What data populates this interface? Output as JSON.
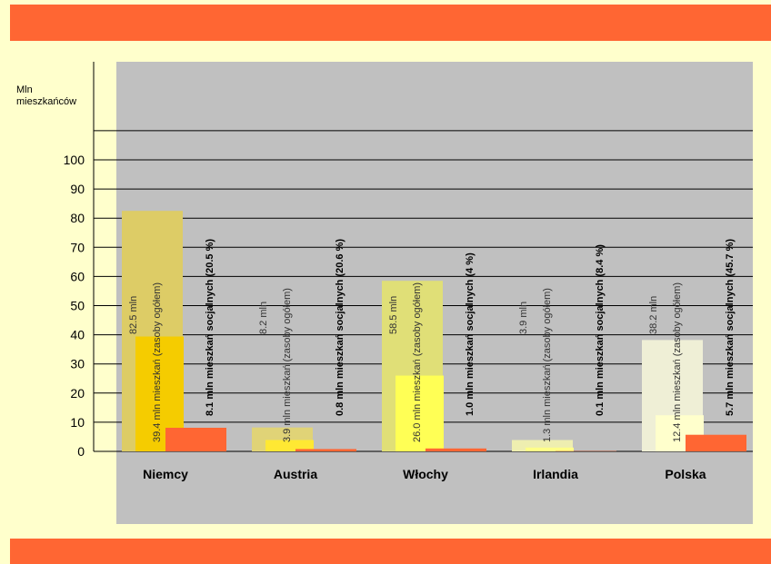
{
  "colors": {
    "band": "#ff6633",
    "background": "#ffffcc",
    "plot_area": "#c0c0c0",
    "total_bars": [
      "#ddcc66",
      "#e0d377",
      "#e0df77",
      "#eeeeb0",
      "#efefd6"
    ],
    "dwelling_bars": [
      "#f5cc00",
      "#ffe833",
      "#ffff55",
      "#ffff88",
      "#ffffcc"
    ],
    "social_bars": "#ff6633"
  },
  "chart_data": {
    "type": "bar",
    "unit_label": "Mln\nmieszkańców",
    "categories": [
      "Niemcy",
      "Austria",
      "Włochy",
      "Irlandia",
      "Polska"
    ],
    "series": [
      {
        "values": [
          82.5,
          8.2,
          58.5,
          3.9,
          38.2
        ]
      },
      {
        "values": [
          39.4,
          3.9,
          26.0,
          1.3,
          12.4
        ]
      },
      {
        "values": [
          8.1,
          0.8,
          1.0,
          0.1,
          5.7
        ]
      }
    ],
    "total_labels": [
      "82.5 mln",
      "8.2 mln",
      "58.5 mln",
      "3.9 mln",
      "38.2 mln"
    ],
    "dwelling_labels": [
      "39.4 mln mieszkań (zasoby ogółem)",
      "3.9 mln mieszkań (zasoby ogółem)",
      "26.0 mln mieszkań (zasoby ogółem)",
      "1.3 mln mieszkań (zasoby ogółem)",
      "12.4 mln mieszkań (zasoby ogółem)"
    ],
    "social_labels": [
      "8.1 mln mieszkań socjalnych (20.5 %)",
      "0.8 mln mieszkań socjalnych (20.6 %)",
      "1.0 mln mieszkań socjalnych (4 %)",
      "0.1 mln mieszkań socjalnych (8.4 %)",
      "5.7 mln mieszkań socjalnych (45.7 %)"
    ],
    "yticks": [
      0,
      10,
      20,
      30,
      40,
      50,
      60,
      70,
      80,
      90,
      100
    ],
    "ylim": [
      0,
      100
    ],
    "grid": true
  }
}
